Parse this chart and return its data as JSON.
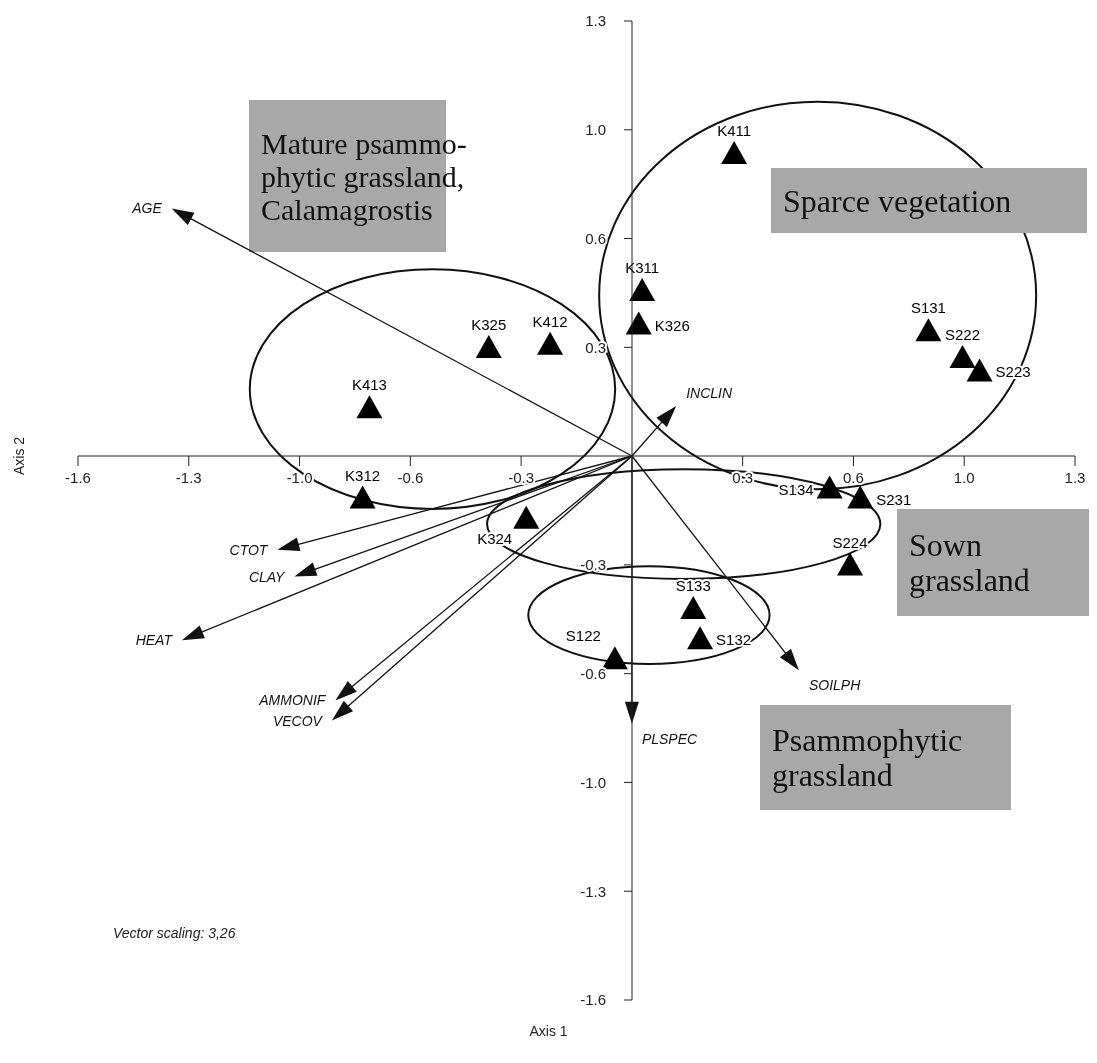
{
  "chart_data": {
    "type": "scatter",
    "xlabel": "Axis 1",
    "ylabel": "Axis 2",
    "marker": "triangle",
    "xlim": [
      -1.625,
      1.3
    ],
    "ylim": [
      -1.625,
      1.3
    ],
    "xticks": [
      {
        "value": -1.625,
        "label": "-1.6"
      },
      -1.3,
      {
        "value": -0.975,
        "label": "-1.0"
      },
      {
        "value": -0.65,
        "label": "-0.6"
      },
      {
        "value": -0.325,
        "label": "-0.3"
      },
      {
        "value": 0.325,
        "label": "0.3"
      },
      {
        "value": 0.65,
        "label": "0.6"
      },
      {
        "value": 0.975,
        "label": "1.0"
      },
      1.3
    ],
    "yticks": [
      {
        "value": -1.625,
        "label": "-1.6"
      },
      -1.3,
      {
        "value": -0.975,
        "label": "-1.0"
      },
      {
        "value": -0.65,
        "label": "-0.6"
      },
      {
        "value": -0.325,
        "label": "-0.3"
      },
      {
        "value": 0.325,
        "label": "0.3"
      },
      {
        "value": 0.65,
        "label": "0.6"
      },
      {
        "value": 0.975,
        "label": "1.0"
      },
      1.3
    ],
    "annotations": [
      "Mature psammo-\nphytic grassland,\nCalamagrostis",
      "Sparce vegetation",
      "Sown\ngrassland",
      "Psammophytic\ngrassland",
      "Vector scaling: 3,26",
      "AGE",
      "INCLIN",
      "SOILPH",
      "PLSPEC",
      "CTOT",
      "CLAY",
      "HEAT",
      "AMMONIF",
      "VECOV"
    ],
    "series": [
      {
        "name": "K411",
        "x": [
          0.3
        ],
        "values": [
          0.9
        ],
        "color": "#000000"
      },
      {
        "name": "K311",
        "x": [
          0.03
        ],
        "values": [
          0.49
        ],
        "color": "#000000"
      },
      {
        "name": "K326",
        "x": [
          0.02
        ],
        "values": [
          0.39
        ],
        "color": "#000000"
      },
      {
        "name": "K325",
        "x": [
          -0.42
        ],
        "values": [
          0.32
        ],
        "color": "#000000"
      },
      {
        "name": "K412",
        "x": [
          -0.24
        ],
        "values": [
          0.33
        ],
        "color": "#000000"
      },
      {
        "name": "K413",
        "x": [
          -0.77
        ],
        "values": [
          0.14
        ],
        "color": "#000000"
      },
      {
        "name": "K312",
        "x": [
          -0.79
        ],
        "values": [
          -0.13
        ],
        "color": "#000000"
      },
      {
        "name": "K324",
        "x": [
          -0.31
        ],
        "values": [
          -0.19
        ],
        "color": "#000000"
      },
      {
        "name": "S131",
        "x": [
          0.87
        ],
        "values": [
          0.37
        ],
        "color": "#000000"
      },
      {
        "name": "S222",
        "x": [
          0.97
        ],
        "values": [
          0.29
        ],
        "color": "#000000"
      },
      {
        "name": "S223",
        "x": [
          1.02
        ],
        "values": [
          0.25
        ],
        "color": "#000000"
      },
      {
        "name": "S134",
        "x": [
          0.58
        ],
        "values": [
          -0.1
        ],
        "color": "#000000"
      },
      {
        "name": "S231",
        "x": [
          0.67
        ],
        "values": [
          -0.13
        ],
        "color": "#000000"
      },
      {
        "name": "S224",
        "x": [
          0.64
        ],
        "values": [
          -0.33
        ],
        "color": "#000000"
      },
      {
        "name": "S133",
        "x": [
          0.18
        ],
        "values": [
          -0.46
        ],
        "color": "#000000"
      },
      {
        "name": "S132",
        "x": [
          0.2
        ],
        "values": [
          -0.55
        ],
        "color": "#000000"
      },
      {
        "name": "S122",
        "x": [
          -0.05
        ],
        "values": [
          -0.61
        ],
        "color": "#000000"
      }
    ]
  }
}
